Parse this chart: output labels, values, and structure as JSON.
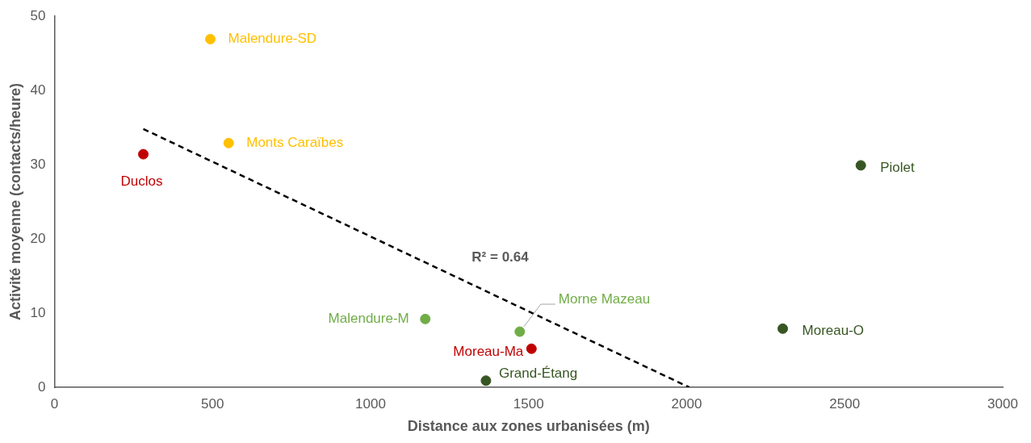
{
  "chart_data": {
    "type": "scatter",
    "xlabel": "Distance aux zones urbanisées (m)",
    "ylabel": "Activité moyenne (contacts/heure)",
    "xlim": [
      0,
      3000
    ],
    "xticks": [
      0,
      500,
      1000,
      1500,
      2000,
      2500,
      3000
    ],
    "ylim": [
      0,
      50
    ],
    "yticks": [
      0,
      10,
      20,
      30,
      40,
      50
    ],
    "grid": false,
    "legend": false,
    "marker": "circle",
    "series": [
      {
        "name": "Malendure-SD",
        "color": "#ffc000",
        "x": [
          493
        ],
        "values": [
          46.9
        ]
      },
      {
        "name": "Monts Caraïbes",
        "color": "#ffc000",
        "x": [
          551
        ],
        "values": [
          32.9
        ]
      },
      {
        "name": "Duclos",
        "color": "#c00000",
        "x": [
          281
        ],
        "values": [
          31.4
        ]
      },
      {
        "name": "Piolet",
        "color": "#375623",
        "x": [
          2551
        ],
        "values": [
          29.9
        ]
      },
      {
        "name": "Malendure-M",
        "color": "#70ad47",
        "x": [
          1173
        ],
        "values": [
          9.2
        ]
      },
      {
        "name": "Morne Mazeau",
        "color": "#70ad47",
        "x": [
          1472
        ],
        "values": [
          7.5
        ]
      },
      {
        "name": "Moreau-Ma",
        "color": "#c00000",
        "x": [
          1509
        ],
        "values": [
          5.2
        ]
      },
      {
        "name": "Grand-Étang",
        "color": "#375623",
        "x": [
          1365
        ],
        "values": [
          0.9
        ]
      },
      {
        "name": "Moreau-O",
        "color": "#375623",
        "x": [
          2304
        ],
        "values": [
          7.9
        ]
      },
      {
        "type": "line",
        "color": "#000000",
        "line_style": "dashed",
        "marker": "none",
        "x": [
          281,
          2008
        ],
        "values": [
          34.8,
          0
        ]
      }
    ],
    "annotations": [
      "R² = 0.64"
    ]
  }
}
